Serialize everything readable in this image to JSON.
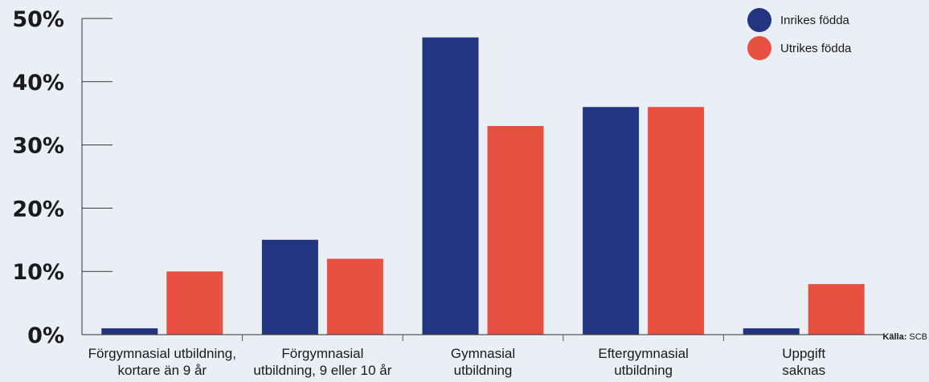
{
  "chart_data": {
    "type": "bar",
    "categories": [
      [
        "Förgymnasial utbildning,",
        "kortare än 9 år"
      ],
      [
        "Förgymnasial",
        "utbildning, 9 eller 10 år"
      ],
      [
        "Gymnasial",
        "utbildning"
      ],
      [
        "Eftergymnasial",
        "utbildning"
      ],
      [
        "Uppgift",
        "saknas"
      ]
    ],
    "series": [
      {
        "name": "Inrikes födda",
        "color": "#233480",
        "values": [
          1,
          15,
          47,
          36,
          1
        ]
      },
      {
        "name": "Utrikes födda",
        "color": "#e85142",
        "values": [
          10,
          12,
          33,
          36,
          8
        ]
      }
    ],
    "ylim": [
      0,
      50
    ],
    "yticks": [
      "0%",
      "10%",
      "20%",
      "30%",
      "40%",
      "50%"
    ],
    "ytick_values": [
      0,
      10,
      20,
      30,
      40,
      50
    ],
    "legend_position": "top-right",
    "source_label": "Källa:",
    "source_value": "SCB"
  }
}
